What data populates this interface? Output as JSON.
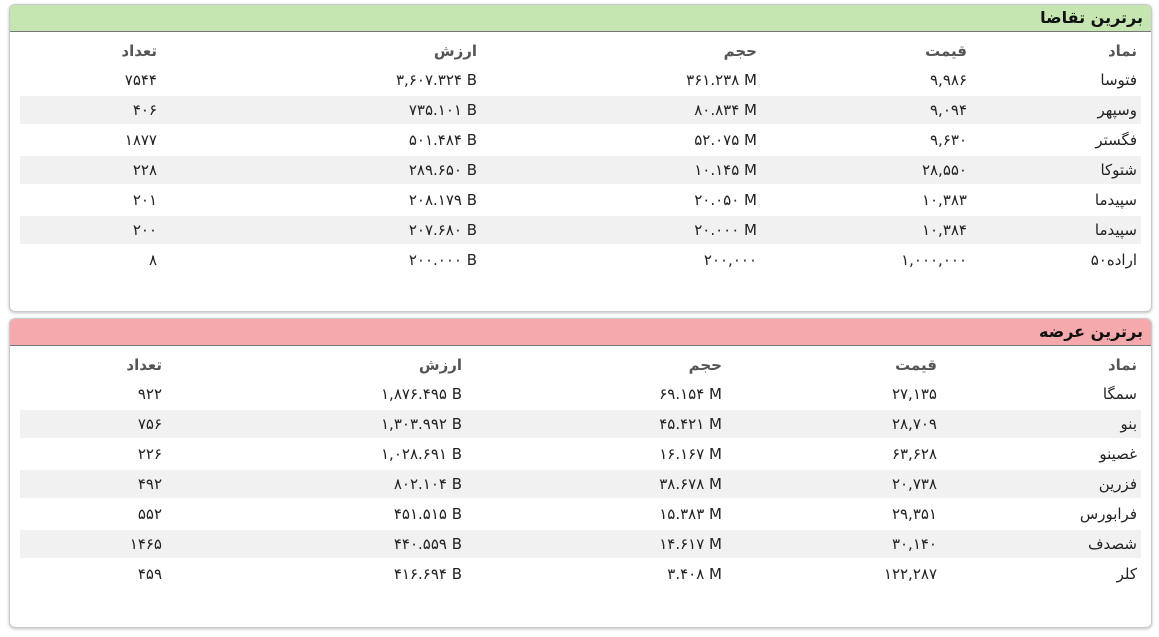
{
  "panels": [
    {
      "title": "برترین تقاضا",
      "columns": [
        "نماد",
        "قیمت",
        "حجم",
        "ارزش",
        "تعداد"
      ],
      "rows": [
        [
          "فتوسا",
          "۹,۹۸۶",
          "۳۶۱.۲۳۸ M",
          "۳,۶۰۷.۳۲۴ B",
          "۷۵۴۴"
        ],
        [
          "وسپهر",
          "۹,۰۹۴",
          "۸۰.۸۳۴ M",
          "۷۳۵.۱۰۱ B",
          "۴۰۶"
        ],
        [
          "فگستر",
          "۹,۶۳۰",
          "۵۲.۰۷۵ M",
          "۵۰۱.۴۸۴ B",
          "۱۸۷۷"
        ],
        [
          "شتوکا",
          "۲۸,۵۵۰",
          "۱۰.۱۴۵ M",
          "۲۸۹.۶۵۰ B",
          "۲۲۸"
        ],
        [
          "سپیدما",
          "۱۰,۳۸۳",
          "۲۰.۰۵۰ M",
          "۲۰۸.۱۷۹ B",
          "۲۰۱"
        ],
        [
          "سپیدما",
          "۱۰,۳۸۴",
          "۲۰.۰۰۰ M",
          "۲۰۷.۶۸۰ B",
          "۲۰۰"
        ],
        [
          "اراده۵۰",
          "۱,۰۰۰,۰۰۰",
          "۲۰۰,۰۰۰",
          "۲۰۰.۰۰۰ B",
          "۸"
        ]
      ]
    },
    {
      "title": "برترین عرضه",
      "columns": [
        "نماد",
        "قیمت",
        "حجم",
        "ارزش",
        "تعداد"
      ],
      "rows": [
        [
          "سمگا",
          "۲۷,۱۳۵",
          "۶۹.۱۵۴ M",
          "۱,۸۷۶.۴۹۵ B",
          "۹۲۲"
        ],
        [
          "بنو",
          "۲۸,۷۰۹",
          "۴۵.۴۲۱ M",
          "۱,۳۰۳.۹۹۲ B",
          "۷۵۶"
        ],
        [
          "غصینو",
          "۶۳,۶۲۸",
          "۱۶.۱۶۷ M",
          "۱,۰۲۸.۶۹۱ B",
          "۲۲۶"
        ],
        [
          "فزرین",
          "۲۰,۷۳۸",
          "۳۸.۶۷۸ M",
          "۸۰۲.۱۰۴ B",
          "۴۹۲"
        ],
        [
          "فرابورس",
          "۲۹,۳۵۱",
          "۱۵.۳۸۳ M",
          "۴۵۱.۵۱۵ B",
          "۵۵۲"
        ],
        [
          "شصدف",
          "۳۰,۱۴۰",
          "۱۴.۶۱۷ M",
          "۴۴۰.۵۵۹ B",
          "۱۴۶۵"
        ],
        [
          "کلر",
          "۱۲۲,۲۸۷",
          "۳.۴۰۸ M",
          "۴۱۶.۶۹۴ B",
          "۴۵۹"
        ]
      ]
    }
  ]
}
